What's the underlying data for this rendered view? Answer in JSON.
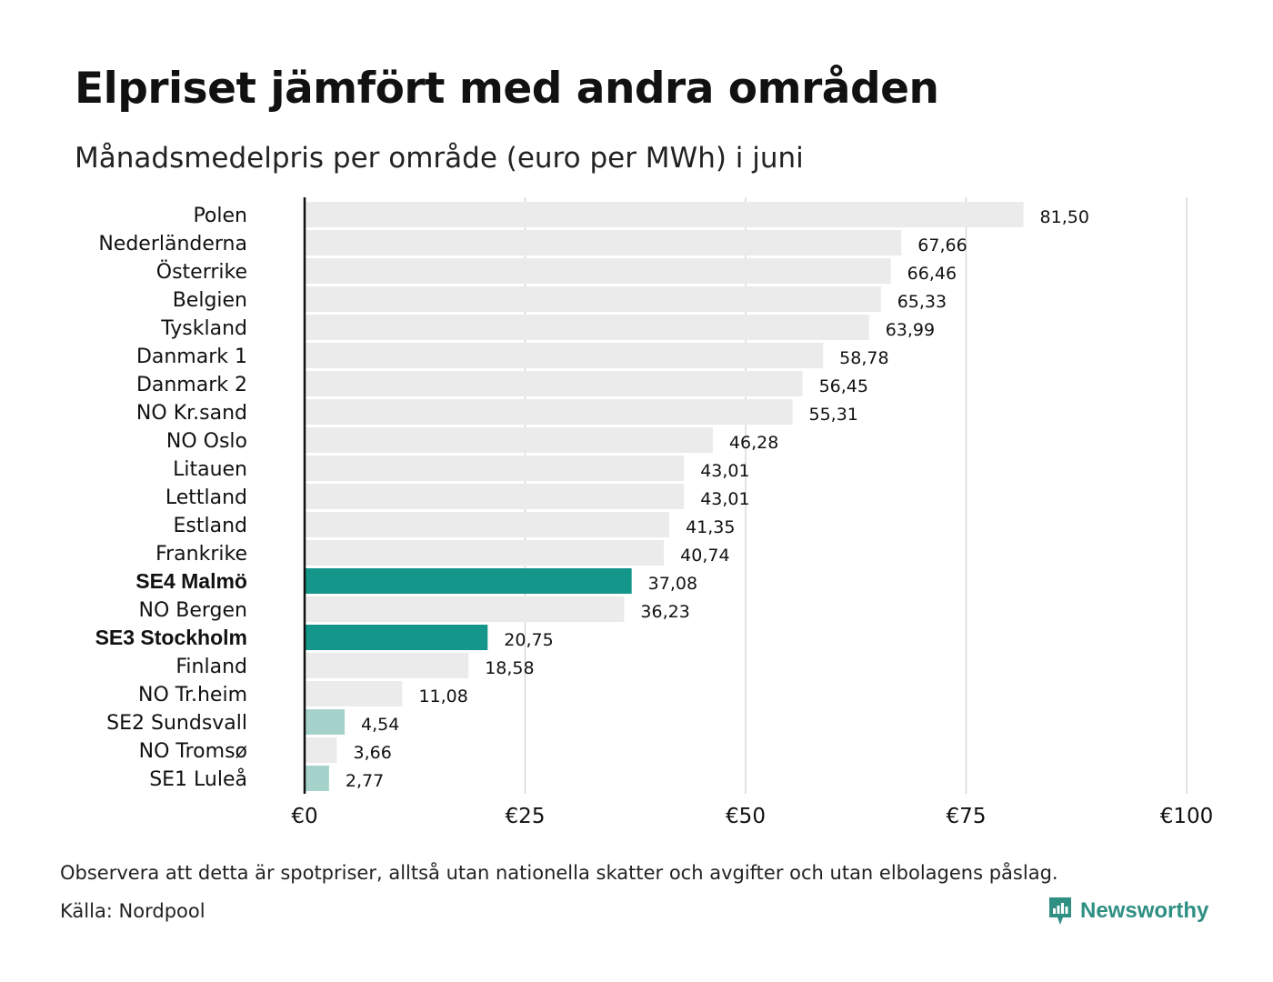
{
  "header": {
    "title": "Elpriset jämfört med andra områden",
    "subtitle": "Månadsmedelpris per område (euro per MWh) i juni"
  },
  "footer": {
    "note": "Observera att detta är spotpriser, alltså utan nationella skatter och avgifter och utan elbolagens påslag.",
    "source": "Källa: Nordpool",
    "brand": "Newsworthy"
  },
  "colors": {
    "default_bar": "#ebebeb",
    "highlight_bar": "#14968a",
    "light_highlight_bar": "#a6d2cc",
    "gridline": "#d4d4d4",
    "axis": "#111111",
    "brand": "#2f8f83"
  },
  "chart_data": {
    "type": "bar",
    "orientation": "horizontal",
    "categories": [
      "Polen",
      "Nederländerna",
      "Österrike",
      "Belgien",
      "Tyskland",
      "Danmark  1",
      "Danmark  2",
      "NO Kr.sand",
      "NO Oslo",
      "Litauen",
      "Lettland",
      "Estland",
      "Frankrike",
      "SE4 Malmö",
      "NO Bergen",
      "SE3 Stockholm",
      "Finland",
      "NO Tr.heim",
      "SE2  Sundsvall",
      "NO Tromsø",
      "SE1  Luleå"
    ],
    "values": [
      81.5,
      67.66,
      66.46,
      65.33,
      63.99,
      58.78,
      56.45,
      55.31,
      46.28,
      43.01,
      43.01,
      41.35,
      40.74,
      37.08,
      36.23,
      20.75,
      18.58,
      11.08,
      4.54,
      3.66,
      2.77
    ],
    "value_labels": [
      "81,50",
      "67,66",
      "66,46",
      "65,33",
      "63,99",
      "58,78",
      "56,45",
      "55,31",
      "46,28",
      "43,01",
      "43,01",
      "41,35",
      "40,74",
      "37,08",
      "36,23",
      "20,75",
      "18,58",
      "11,08",
      "4,54",
      "3,66",
      "2,77"
    ],
    "highlight": [
      "default",
      "default",
      "default",
      "default",
      "default",
      "default",
      "default",
      "default",
      "default",
      "default",
      "default",
      "default",
      "default",
      "strong",
      "default",
      "strong",
      "default",
      "default",
      "light",
      "default",
      "light"
    ],
    "bold_labels": [
      "SE4 Malmö",
      "SE3 Stockholm"
    ],
    "xlim": [
      0,
      100
    ],
    "xticks": [
      0,
      25,
      50,
      75,
      100
    ],
    "xtick_labels": [
      "€0",
      "€25",
      "€50",
      "€75",
      "€100"
    ],
    "grid": true,
    "title": "Elpriset jämfört med andra områden",
    "subtitle": "Månadsmedelpris per område (euro per MWh) i juni"
  }
}
